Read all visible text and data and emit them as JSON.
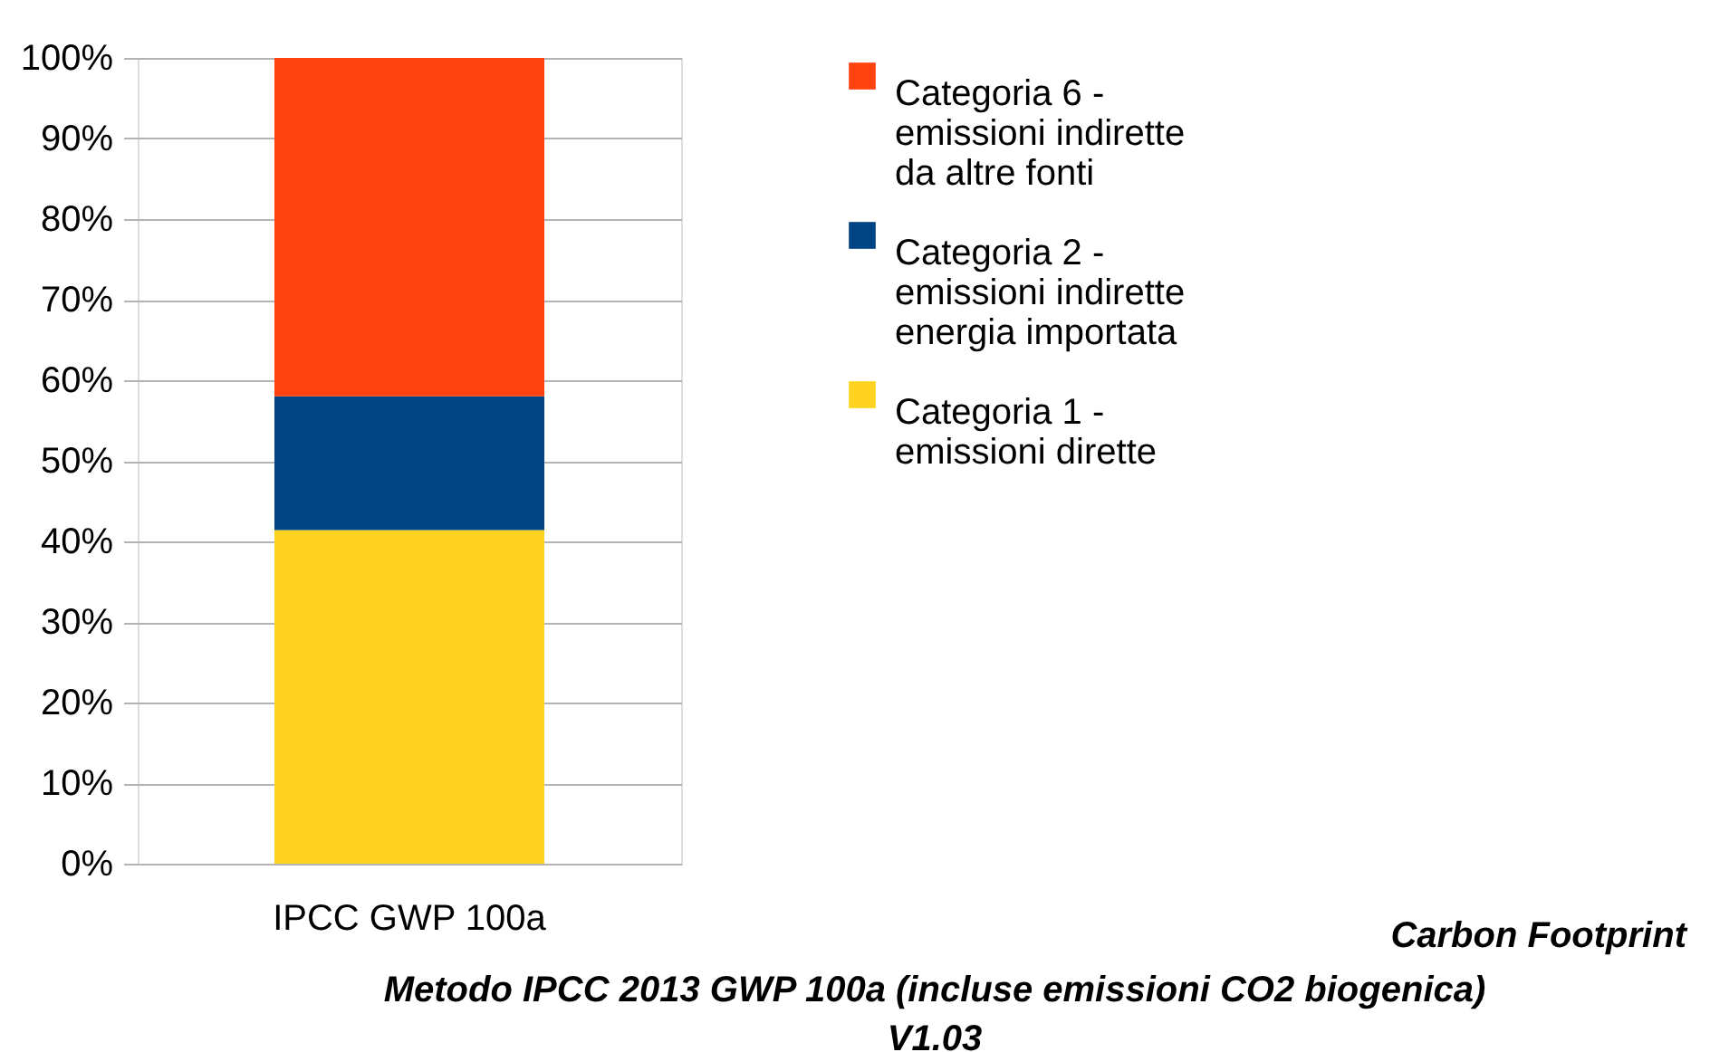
{
  "chart_data": {
    "type": "bar",
    "stacked": true,
    "categories": [
      "IPCC GWP 100a"
    ],
    "series": [
      {
        "name": "Categoria 1 - emissioni dirette",
        "color": "#ffd320",
        "values": [
          41.4
        ]
      },
      {
        "name": "Categoria 2 - emissioni indirette energia importata",
        "color": "#004586",
        "values": [
          16.6
        ]
      },
      {
        "name": "Categoria 6 - emissioni indirette da altre fonti",
        "color": "#ff420e",
        "values": [
          42.0
        ]
      }
    ],
    "ylim": [
      0,
      100
    ],
    "yticks": [
      {
        "value": 0,
        "label": "0%"
      },
      {
        "value": 10,
        "label": "10%"
      },
      {
        "value": 20,
        "label": "20%"
      },
      {
        "value": 30,
        "label": "30%"
      },
      {
        "value": 40,
        "label": "40%"
      },
      {
        "value": 50,
        "label": "50%"
      },
      {
        "value": 60,
        "label": "60%"
      },
      {
        "value": 70,
        "label": "70%"
      },
      {
        "value": 80,
        "label": "80%"
      },
      {
        "value": 90,
        "label": "90%"
      },
      {
        "value": 100,
        "label": "100%"
      }
    ],
    "grid": "y",
    "legend": "right",
    "annotations": [
      "Carbon Footprint",
      "Metodo IPCC 2013 GWP 100a (incluse emissioni CO2 biogenica)",
      "V1.03"
    ]
  }
}
